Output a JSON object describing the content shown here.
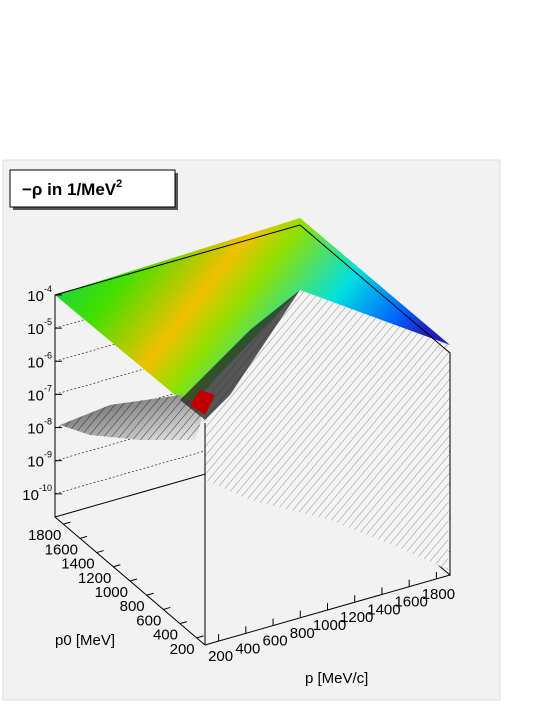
{
  "chart_data": {
    "type": "surface",
    "title": "−ρ in 1/MeV",
    "title_superscript": "2",
    "x_label": "p [MeV/c]",
    "y_label": "p0 [MeV]",
    "xlim": [
      100,
      1900
    ],
    "xticks": [
      200,
      400,
      600,
      800,
      1000,
      1200,
      1400,
      1600,
      1800
    ],
    "ylim": [
      100,
      1900
    ],
    "yticks": [
      200,
      400,
      600,
      800,
      1000,
      1200,
      1400,
      1600,
      1800
    ],
    "zscale": "log",
    "zlim": [
      2e-11,
      0.0001
    ],
    "zticks": [
      {
        "value": 0.0001,
        "label": "10",
        "exponent": "-4"
      },
      {
        "value": 1e-05,
        "label": "10",
        "exponent": "-5"
      },
      {
        "value": 1e-06,
        "label": "10",
        "exponent": "-6"
      },
      {
        "value": 1e-07,
        "label": "10",
        "exponent": "-7"
      },
      {
        "value": 1e-08,
        "label": "10",
        "exponent": "-8"
      },
      {
        "value": 1e-09,
        "label": "10",
        "exponent": "-9"
      },
      {
        "value": 1e-10,
        "label": "10",
        "exponent": "-10"
      }
    ],
    "grid": true
  }
}
